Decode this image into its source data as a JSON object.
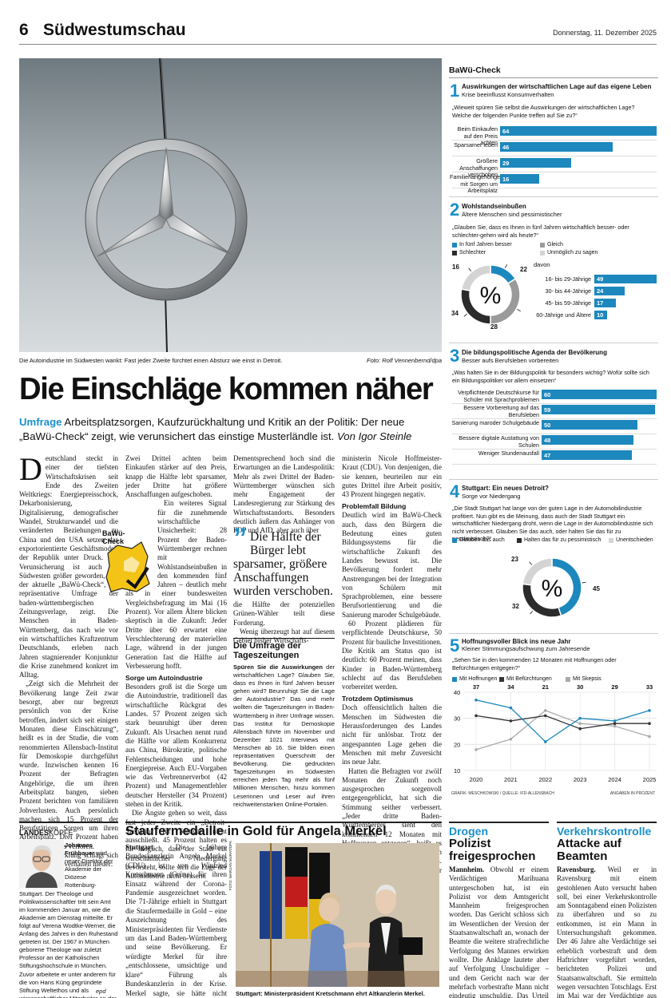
{
  "header": {
    "page_number": "6",
    "section": "Südwestumschau",
    "date": "Donnerstag, 11. Dezember 2025"
  },
  "photo": {
    "caption": "Die Autoindustrie im Südwesten wankt: Fast jeder Zweite fürchtet einen Absturz wie einst in Detroit.",
    "credit": "Foto: Rolf Vennenbernd/dpa"
  },
  "article": {
    "headline": "Die Einschläge kommen näher",
    "kicker": "Umfrage",
    "teaser": " Arbeitsplatzsorgen, Kaufzurückhaltung und Kritik an der Politik: Der neue „BaWü-Check“ zeigt, wie verunsichert das einstige Musterländle ist.",
    "byline": "Von Igor Steinle",
    "dropcap": "D",
    "col1_p1": "eutschland steckt in einer der tiefsten Wirtschaftskrisen seit Ende des Zweiten Weltkriegs: Energiepreisschock, Dekarbonisierung, Digitalisierung, demografischer Wandel, Strukturwandel und die veränderten Beziehungen zu China und den USA setzen das exportorientierte Geschäftsmodell der Republik unter Druck. Die Verunsicherung ist auch im Südwesten größer geworden, wie der aktuelle „BaWü-Check“, die repräsentative Umfrage der baden-württembergischen Zeitungsverlage, zeigt. Die Menschen in Baden-Württemberg, das nach wie vor ein wirtschaftliches Kraftzentrum Deutschlands, erleben nach Jahren stagnierender Konjunktur die Krise zunehmend konkret im Alltag.",
    "col1_p2": "„Zeigt sich die Mehrheit der Bevölkerung lange Zeit zwar besorgt, aber nur begrenzt persönlich von der Krise betroffen, ändert sich seit einigen Monaten diese Einschätzung“, heißt es in der Studie, die vom renommierten Allensbach-Institut für Demoskopie durchgeführt wurde. Inzwischen kennen 16 Prozent der Befragten Angehörige, die um ihren Arbeitsplatz bangen, sieben Prozent berichten von familiären Jobverlusten. Auch persönlich machen sich 15 Prozent der Berufstätigen Sorgen um ihren Arbeitsplatz. Drei Prozent haben ihren Job bereits verloren.",
    "col1_p3": "Diese Entwicklung schlägt sich auch im Alltagsverhalten nieder:",
    "col2_p1": "Zwei Drittel achten beim Einkaufen stärker auf den Preis, knapp die Hälfte lebt sparsamer, jeder Dritte hat größere Anschaffungen aufgeschoben.",
    "col2_p2": "Ein weiteres Signal für die zunehmende wirtschaftliche Unsicherheit: 28 Prozent der Baden-Württemberger rechnen mit Wohlstandseinbußen in den kommenden fünf Jahren – deutlich mehr als in einer bundesweiten Vergleichsbefragung im Mai (16 Prozent). Vor allem Ältere blicken skeptisch in die Zukunft: Jeder Dritte über 60 erwartet eine Verschlechterung der materiellen Lage, während in der jungen Generation fast die Hälfte auf Verbesserung hofft.",
    "col2_h": "Sorge um Autoindustrie",
    "col2_p3": "Besonders groß ist die Sorge um die Autoindustrie, traditionell das wirtschaftliche Rückgrat des Landes. 57 Prozent zeigen sich stark beunruhigt über deren Zukunft. Als Ursachen nennt rund die Hälfte vor allem Konkurrenz aus China, Bürokratie, politische Fehlentscheidungen und hohe Energiepreise. Auch EU-Vorgaben wie das Verbrennerverbot (42 Prozent) und Managementfehler deutscher Hersteller (34 Prozent) stehen in der Kritik.",
    "col2_p4": "Die Ängste gehen so weit, dass fast jeder Zweite ein „Detroit-Szenario“ für Stuttgart nicht ausschließt. 45 Prozent halten es für möglich, dass der Stadt ein wirtschaftlicher Niedergang bevorsteht, sollte sich die Lage der Autoindustrie nicht bessern.",
    "col3_p1": "Dementsprechend hoch sind die Erwartungen an die Landespolitik: Mehr als zwei Drittel der Baden-Württemberger wünschen sich mehr Engagement der Landesregierung zur Stärkung des Wirtschaftsstandorts. Besonders deutlich äußern das Anhänger von FDP und AfD, aber auch über",
    "pull_quote": "Die Hälfte der Bürger lebt sparsamer, größere Anschaffungen wurden verschoben.",
    "col3_p2": "die Hälfte der potenziellen Grünen-Wähler teilt diese Forderung.",
    "col3_p3": "Wenig überzeugt hat auf diesem Gebiet bisher Wirtschafts-",
    "col4_p1": "ministerin Nicole Hoffmeister-Kraut (CDU). Von denjenigen, die sie kennen, beurteilen nur ein gutes Drittel ihre Arbeit positiv, 43 Prozent hingegen negativ.",
    "col4_h1": "Problemfall Bildung",
    "col4_p2": "Deutlich wird im BaWü-Check auch, dass den Bürgern die Bedeutung eines guten Bildungssystems für die wirtschaftliche Zukunft des Landes bewusst ist. Die Bevölkerung fordert mehr Anstrengungen bei der Integration von Schülern mit Sprachproblemen, eine bessere Berufsorientierung und die Sanierung maroder Schulgebäude.",
    "col4_p3": "60 Prozent plädieren für verpflichtende Deutschkurse, 50 Prozent für bauliche Investitionen. Die Kritik am Status quo ist deutlich: 60 Prozent meinen, dass Kinder in Baden-Württemberg schlecht auf das Berufsleben vorbereitet werden.",
    "col4_h2": "Trotzdem Optimismus",
    "col4_p4": "Doch offensichtlich halten die Menschen im Südwesten die Herausforderungen des Landes nicht für unlösbar. Trotz der angespannten Lage gehen die Menschen mit mehr Zuversicht ins neue Jahr.",
    "col4_p5": "Hatten die Befragten vor zwölf Monaten der Zukunft noch ausgesprochen sorgenvoll entgegengeblickt, hat sich die Stimmung seither verbessert. „Jeder dritte Baden-Württemberger sieht den kommenden 12 Monaten mit Hoffnungen entgegen“, heißt es nun – ein deutlicher Anstieg im Vergleich zum Jahresbeginn. Damals war es nur gut jeder vierte."
  },
  "logo": {
    "line1": "BaWü-",
    "line2": "Check"
  },
  "survey_box": {
    "title": "Die Umfrage der Tageszeitungen",
    "lead": "Spüren Sie die Auswirkungen",
    "text": " der wirtschaftlichen Lage? Glauben Sie, dass es Ihnen in fünf Jahren besser gehen wird? Beunruhigt Sie die Lage der Autoindustrie? Das und mehr wollten die Tageszeitungen in Baden-Württemberg in ihrer Umfrage wissen. Das Institut für Demoskopie Allensbach führte im November und Dezember 1021 Interviews mit Menschen ab 16. Sie bilden einen repräsentativen Querschnitt der Bevölkerung. Die gedruckten Tageszeitungen im Südwesten erreichen jeden Tag mehr als fünf Millionen Menschen, hinzu kommen Leserinnen und Leser auf ihren reichweitenstarken Online-Portalen."
  },
  "info": {
    "title": "BaWü-Check",
    "s1": {
      "num": "1",
      "title": "Auswirkungen der wirtschaftlichen Lage auf das eigene Leben",
      "sub": "Krise beeinflusst Konsumverhalten",
      "q": "„Wieweit spüren Sie selbst die Auswirkungen der wirtschaftlichen Lage? Welche der folgenden Punkte treffen auf Sie zu?“"
    },
    "s2": {
      "num": "2",
      "title": "Wohlstandseinbußen",
      "sub": "Ältere Menschen sind pessimistischer",
      "q": "„Glauben Sie, dass es Ihnen in fünf Jahren wirtschaftlich besser- oder schlechter-gehen wird als heute?“",
      "legend": [
        "In fünf Jahren besser",
        "Gleich",
        "Schlechter",
        "Unmöglich zu sagen"
      ],
      "davon": "davon",
      "pct": "%"
    },
    "s3": {
      "num": "3",
      "title": "Die bildungspolitische Agenda der Bevölkerung",
      "sub": "Besser aufs Berufsleben vorbereiten",
      "q": "„Was halten Sie in der Bildungspolitik für besonders wichtig? Wofür sollte sich ein Bildungspolitiker vor allem einsetzen“"
    },
    "s4": {
      "num": "4",
      "title": "Stuttgart: Ein neues Detroit?",
      "sub": "Sorge vor Niedergang",
      "q": "„Die Stadt Stuttgart hat lange von der guten Lage in der Automobilindustrie profitiert. Nun gibt es die Meinung, dass auch der Stadt Stuttgart ein wirtschaftlicher Niedergang droht, wenn die Lage in der Automobilindustrie sich nicht verbessert. Glauben Sie das auch, oder halten Sie das für zu pessimistisch?“",
      "legend": [
        "Glauben das auch",
        "Halten das für zu pessimistisch",
        "Unentschieden"
      ],
      "pct": "%"
    },
    "s5": {
      "num": "5",
      "title": "Hoffnungsvoller Blick ins neue Jahr",
      "sub": "Kleiner Stimmungsaufschwung zum Jahresende",
      "q": "„Sehen Sie in den kommenden 12 Monaten mit Hoffnungen oder Befürchtungen entgegen?“",
      "legend": [
        "Mit Hoffnungen",
        "Mit Befürchtungen",
        "Mit Skepsis"
      ]
    },
    "credit": "GRAFIK: MESCHKOWSKI / QUELLE: IFD-ALLENSBACH",
    "unit": "ANGABEN IN PROZENT"
  },
  "chart_data": [
    {
      "type": "bar",
      "categories": [
        "Beim Einkaufen auf den Preis achten",
        "Sparsamer leben",
        "Größere Anschaffungen verschoben",
        "Familienangehörige mit Sorgen um Arbeitsplatz"
      ],
      "values": [
        64,
        46,
        29,
        16
      ]
    },
    {
      "type": "pie",
      "categories": [
        "In fünf Jahren besser",
        "Gleich",
        "Schlechter",
        "Unmöglich zu sagen"
      ],
      "values": [
        16,
        34,
        28,
        22
      ],
      "colors": [
        "#1d88bd",
        "#9a9a9a",
        "#2b2b2b",
        "#d4d4d4"
      ]
    },
    {
      "type": "bar",
      "title": "davon",
      "categories": [
        "16- bis 29-Jährige",
        "30- bis 44-Jährige",
        "45- bis 59-Jährige",
        "60-Jährige und Ältere"
      ],
      "values": [
        49,
        24,
        17,
        10
      ]
    },
    {
      "type": "bar",
      "categories": [
        "Verpflichtende Deutschkurse für Schüler mit Sprachproblemen",
        "Bessere Vorbereitung auf das Berufsleben",
        "Sanierung maroder Schulgebäude",
        "Bessere digitale Austattung von Schulen",
        "Weniger Stundenausfall"
      ],
      "values": [
        60,
        59,
        50,
        48,
        47
      ]
    },
    {
      "type": "pie",
      "categories": [
        "Glauben das auch",
        "Halten das für zu pessimistisch",
        "Unentschieden"
      ],
      "values": [
        45,
        32,
        23
      ],
      "colors": [
        "#1d88bd",
        "#2b2b2b",
        "#d4d4d4"
      ]
    },
    {
      "type": "line",
      "x": [
        "2020",
        "2021",
        "2022",
        "2023",
        "2024",
        "2025"
      ],
      "series": [
        {
          "name": "Mit Hoffnungen",
          "values": [
            37,
            34,
            21,
            30,
            29,
            33
          ],
          "color": "#1d88bd"
        },
        {
          "name": "Mit Befürchtungen",
          "values": [
            31,
            29,
            31,
            26,
            28,
            28
          ],
          "color": "#333333"
        },
        {
          "name": "Mit Skepsis",
          "values": [
            18,
            22,
            33,
            28,
            27,
            23
          ],
          "color": "#aaaaaa"
        }
      ],
      "ylim": [
        10,
        40
      ],
      "yticks": [
        "10",
        "20",
        "30",
        "40"
      ],
      "grid": true
    }
  ],
  "bottom": {
    "lk_head": "LANDES",
    "lk_head2": "KÖPFE",
    "lk_name": "Johannes Frühbauer",
    "lk_text": " wird neuer Direktor der Akademie der Diözese Rottenburg-Stuttgart. Der Theologe und Politikwissenschaftler tritt sein Amt im kommenden Januar an, wie die Akademie am Dienstag mitteilte. Er folgt auf Verena Wodtke-Werner, die Anfang des Jahres in den Ruhestand getreten ist. Der 1967 in München geborene Theologe war zuletzt Professor an der Katholischen Stiftungshochschule in München. Zuvor arbeitete er unter anderem für die von Hans Küng gegründete Stiftung Weltethos und als wissenschaftlicher Mitarbeiter an der Universität Augsburg.",
    "lk_src": "epd",
    "s2_title": "Staufermedaille in Gold für Angela Merkel",
    "s2_place": "Stuttgart.",
    "s2_text": " Die frühere Bundeskanzlerin Angela Merkel (CDU) ist von Winfried Kretschmann (Grüne) für ihren Einsatz während der Corona-Pandemie ausgezeichnet worden. Die 71-Jährige erhielt in Stuttgart die Staufermedaille in Gold – eine Auszeichnung des Ministerpräsidenten für Verdienste um das Land Baden-Württemberg und seine Bevölkerung. Er würdigte Merkel für ihre „entschlossene, umsichtige und klare“ Führung als Bundeskanzlerin in der Krise. Merkel sagte, sie hätte nicht gedacht, dass sie, aus der DDR kommend, mal bürgerliche Freiheiten zeitweilig außer Kraft setzen müsse.",
    "s2_src": "dpa",
    "s2_cap": "Stuttgart: Ministerpräsident Kretschmann ehrt Altkanzlerin Merkel.",
    "s2_credit": "FOTO: MARIJAN MURAT/DPA",
    "s3_kicker": "Drogen",
    "s3_title": "Polizist freigesprochen",
    "s3_place": "Mannheim.",
    "s3_text": " Obwohl er einem Verdächtigen Marihuana untergeschoben hat, ist ein Polizist vor dem Amtsgericht Mannheim freigesprochen worden. Das Gericht schloss sich im Wesentlichen der Version der Staatsanwaltschaft an, wonach der Beamte die weitere strafrechtliche Verfolgung des Mannes erwirken wollte. Die Anklage lautete aber auf Verfolgung Unschuldiger – und dem Gericht nach war der mehrfach vorbestrafte Mann nicht eindeutig unschuldig. Das Urteil ist noch nicht rechtskräftig.",
    "s3_src": "dpa",
    "s4_kicker": "Verkehrskontrolle",
    "s4_title": "Attacke auf Beamten",
    "s4_place": "Ravensburg.",
    "s4_text": " Weil er in Ravensburg mit einem gestohlenen Auto versucht haben soll, bei einer Verkehrskontrolle am Sonntagabend einen Polizisten zu überfahren und so zu entkommen, ist ein Mann in Untersuchungshaft gekommen. Der 46 Jahre alte Verdächtige sei erheblich vorbestraft und dem Haftrichter vorgeführt worden, berichteten Polizei und Staatsanwaltschaft. Sie ermitteln wegen versuchten Totschlags. Erst im Mai war der Verdächtige aus einem Gefängnis entlassen worden.",
    "s4_src": "dpa"
  }
}
